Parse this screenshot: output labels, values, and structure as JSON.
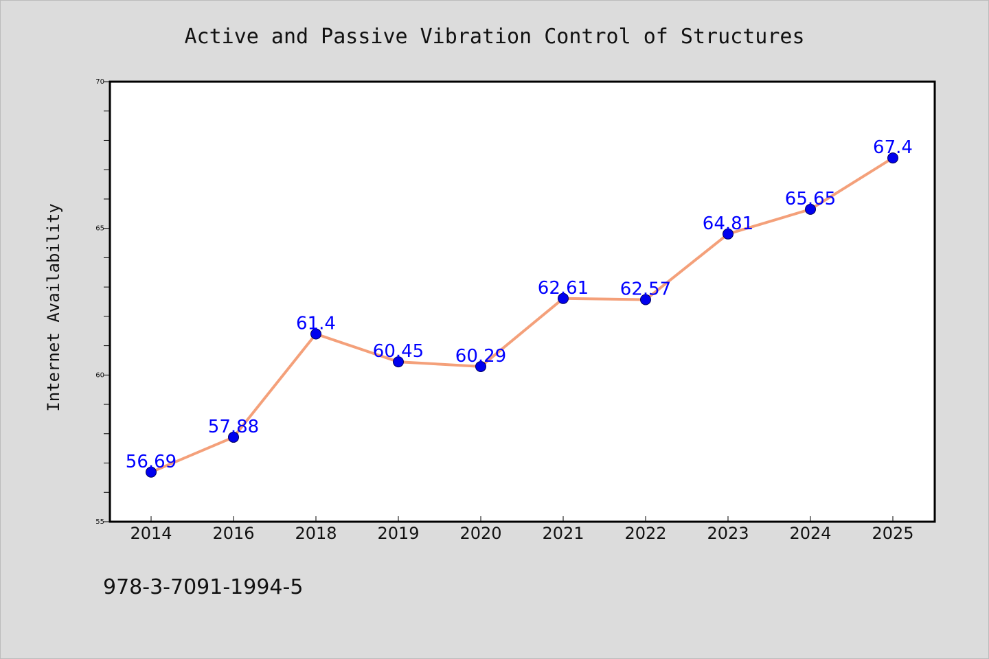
{
  "chart_data": {
    "type": "line",
    "title": "Active and Passive Vibration Control of Structures",
    "xlabel": "",
    "ylabel": "Internet Availability",
    "categories": [
      "2014",
      "2016",
      "2018",
      "2019",
      "2020",
      "2021",
      "2022",
      "2023",
      "2024",
      "2025"
    ],
    "series": [
      {
        "values": [
          56.69,
          57.88,
          61.4,
          60.45,
          60.29,
          62.61,
          62.57,
          64.81,
          65.65,
          67.4
        ],
        "data_labels": [
          "56.69",
          "57.88",
          "61.4",
          "60.45",
          "60.29",
          "62.61",
          "62.57",
          "64.81",
          "65.65",
          "67.4"
        ],
        "line_color": "#f4a07a",
        "marker_color": "#0000ee"
      }
    ],
    "ylim": [
      55,
      70
    ],
    "yticks": [
      "55",
      "60",
      "65",
      "70"
    ],
    "grid": false,
    "legend": "none",
    "label_color": "#0000ff"
  },
  "footer": {
    "isbn": "978-3-7091-1994-5"
  },
  "colors": {
    "background": "#dcdcdc",
    "plot_background": "#ffffff"
  }
}
